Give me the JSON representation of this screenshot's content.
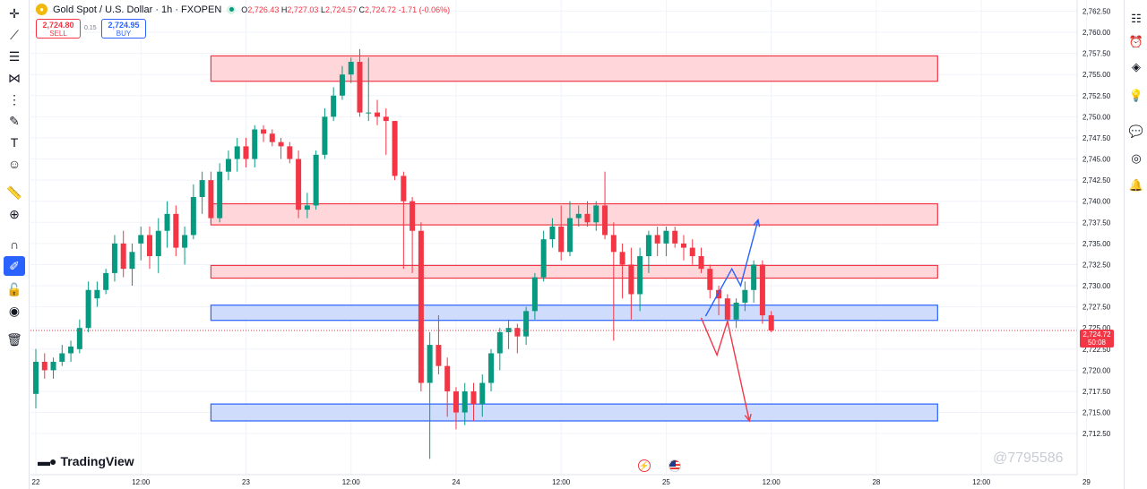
{
  "header": {
    "symbol_title": "Gold Spot / U.S. Dollar · 1h · FXOPEN",
    "open_label": "O",
    "open": "2,726.43",
    "high_label": "H",
    "high": "2,727.03",
    "low_label": "L",
    "low": "2,724.57",
    "close_label": "C",
    "close": "2,724.72",
    "change": "-1.71 (-0.06%)"
  },
  "trade": {
    "sell_price": "2,724.80",
    "sell_label": "SELL",
    "spread": "0.15",
    "buy_price": "2,724.95",
    "buy_label": "BUY"
  },
  "brand": {
    "name": "TradingView"
  },
  "watermark": "@7795586",
  "current_price": {
    "price": "2,724.72",
    "countdown": "50:08"
  },
  "colors": {
    "up": "#089981",
    "down": "#f23645",
    "accent": "#2962ff",
    "resistance_fill": "#ffd6d9",
    "support_fill": "#cfdcfb"
  },
  "left_tools": [
    "crosshair-icon",
    "trend-line-icon",
    "fib-icon",
    "pattern-icon",
    "projection-icon",
    "brush-icon",
    "text-icon",
    "emoji-icon",
    "ruler-icon",
    "zoom-icon",
    "magnet-icon",
    "lock-drawing-icon",
    "lock-icon",
    "eye-icon",
    "trash-icon"
  ],
  "right_tools": [
    "watchlist-icon",
    "alarm-clock-icon",
    "layers-icon",
    "lightbulb-icon",
    "chat-icon",
    "broadcast-icon",
    "bell-icon"
  ],
  "chart_data": {
    "type": "candlestick",
    "symbol": "Gold Spot / U.S. Dollar",
    "interval": "1h",
    "ylim": [
      2710.5,
      2763.5
    ],
    "y_ticks": [
      "2,712.50",
      "2,715.00",
      "2,717.50",
      "2,720.00",
      "2,722.50",
      "2,725.00",
      "2,727.50",
      "2,730.00",
      "2,732.50",
      "2,735.00",
      "2,737.50",
      "2,740.00",
      "2,742.50",
      "2,745.00",
      "2,747.50",
      "2,750.00",
      "2,752.50",
      "2,755.00",
      "2,757.50",
      "2,760.00",
      "2,762.50"
    ],
    "x_ticks": [
      {
        "label": "22",
        "at": 0
      },
      {
        "label": "12:00",
        "at": 12
      },
      {
        "label": "23",
        "at": 24
      },
      {
        "label": "12:00",
        "at": 36
      },
      {
        "label": "24",
        "at": 48
      },
      {
        "label": "12:00",
        "at": 60
      },
      {
        "label": "25",
        "at": 72
      },
      {
        "label": "12:00",
        "at": 84
      },
      {
        "label": "28",
        "at": 96
      },
      {
        "label": "12:00",
        "at": 108
      },
      {
        "label": "29",
        "at": 120
      },
      {
        "label": "12:00",
        "at": 132
      }
    ],
    "candles": [
      [
        2717.2,
        2722.5,
        2715.5,
        2721.0
      ],
      [
        2721.0,
        2722.0,
        2719.0,
        2720.0
      ],
      [
        2720.0,
        2721.5,
        2719.0,
        2721.0
      ],
      [
        2721.0,
        2723.0,
        2720.5,
        2722.0
      ],
      [
        2722.0,
        2723.5,
        2721.0,
        2722.8
      ],
      [
        2722.5,
        2726.0,
        2722.0,
        2725.0
      ],
      [
        2725.0,
        2730.5,
        2724.5,
        2729.5
      ],
      [
        2728.5,
        2730.5,
        2727.5,
        2729.5
      ],
      [
        2729.5,
        2732.0,
        2729.0,
        2731.5
      ],
      [
        2731.5,
        2736.0,
        2730.5,
        2735.0
      ],
      [
        2735.0,
        2736.5,
        2731.0,
        2732.0
      ],
      [
        2732.0,
        2735.0,
        2730.0,
        2734.0
      ],
      [
        2735.0,
        2737.0,
        2733.0,
        2736.0
      ],
      [
        2736.0,
        2737.0,
        2732.0,
        2733.5
      ],
      [
        2733.5,
        2738.0,
        2731.5,
        2736.5
      ],
      [
        2736.5,
        2740.0,
        2734.5,
        2738.5
      ],
      [
        2738.5,
        2739.5,
        2733.5,
        2734.5
      ],
      [
        2734.5,
        2737.0,
        2732.5,
        2736.0
      ],
      [
        2736.0,
        2742.0,
        2735.5,
        2740.5
      ],
      [
        2740.5,
        2743.5,
        2738.5,
        2742.5
      ],
      [
        2742.5,
        2743.5,
        2737.5,
        2738.0
      ],
      [
        2738.0,
        2744.5,
        2737.5,
        2743.5
      ],
      [
        2743.5,
        2746.0,
        2742.5,
        2745.0
      ],
      [
        2745.0,
        2747.5,
        2743.5,
        2746.5
      ],
      [
        2746.5,
        2747.5,
        2744.0,
        2745.0
      ],
      [
        2745.0,
        2749.0,
        2744.0,
        2748.5
      ],
      [
        2748.5,
        2749.0,
        2747.0,
        2748.0
      ],
      [
        2748.0,
        2748.5,
        2746.5,
        2747.0
      ],
      [
        2747.0,
        2747.5,
        2745.0,
        2746.5
      ],
      [
        2746.5,
        2747.0,
        2744.5,
        2745.0
      ],
      [
        2745.0,
        2746.0,
        2738.0,
        2739.0
      ],
      [
        2739.0,
        2741.0,
        2738.0,
        2739.5
      ],
      [
        2739.5,
        2746.0,
        2739.0,
        2745.5
      ],
      [
        2745.5,
        2751.0,
        2745.0,
        2750.0
      ],
      [
        2750.0,
        2753.5,
        2749.5,
        2752.5
      ],
      [
        2752.5,
        2756.0,
        2752.0,
        2755.0
      ],
      [
        2755.0,
        2757.0,
        2754.0,
        2756.5
      ],
      [
        2756.5,
        2758.0,
        2750.0,
        2750.5
      ],
      [
        2750.5,
        2757.0,
        2749.5,
        2750.5
      ],
      [
        2750.5,
        2752.0,
        2749.0,
        2750.0
      ],
      [
        2750.0,
        2751.0,
        2745.5,
        2749.5
      ],
      [
        2749.5,
        2749.5,
        2742.5,
        2743.0
      ],
      [
        2743.0,
        2743.5,
        2732.0,
        2740.0
      ],
      [
        2740.0,
        2740.5,
        2731.5,
        2736.5
      ],
      [
        2736.5,
        2737.5,
        2717.5,
        2718.5
      ],
      [
        2718.5,
        2724.5,
        2709.5,
        2723.0
      ],
      [
        2723.0,
        2726.5,
        2719.5,
        2720.5
      ],
      [
        2720.5,
        2721.5,
        2714.5,
        2717.5
      ],
      [
        2717.5,
        2718.0,
        2713.0,
        2715.0
      ],
      [
        2715.0,
        2718.5,
        2713.5,
        2717.5
      ],
      [
        2717.5,
        2718.5,
        2714.0,
        2716.0
      ],
      [
        2716.0,
        2719.5,
        2714.5,
        2718.5
      ],
      [
        2718.5,
        2722.5,
        2717.5,
        2722.0
      ],
      [
        2722.0,
        2725.0,
        2720.0,
        2724.5
      ],
      [
        2724.5,
        2726.0,
        2722.5,
        2725.0
      ],
      [
        2725.0,
        2725.5,
        2722.0,
        2724.0
      ],
      [
        2724.0,
        2727.5,
        2723.0,
        2727.0
      ],
      [
        2727.0,
        2731.5,
        2726.0,
        2731.0
      ],
      [
        2731.0,
        2736.5,
        2730.5,
        2735.5
      ],
      [
        2735.5,
        2738.0,
        2734.5,
        2737.0
      ],
      [
        2737.0,
        2739.5,
        2733.0,
        2734.0
      ],
      [
        2734.0,
        2740.0,
        2733.5,
        2738.0
      ],
      [
        2738.0,
        2739.5,
        2737.0,
        2738.5
      ],
      [
        2738.5,
        2740.0,
        2737.0,
        2737.5
      ],
      [
        2737.5,
        2740.0,
        2736.5,
        2739.5
      ],
      [
        2739.5,
        2743.5,
        2735.5,
        2736.0
      ],
      [
        2736.0,
        2737.5,
        2723.5,
        2734.0
      ],
      [
        2734.0,
        2735.0,
        2728.5,
        2732.5
      ],
      [
        2732.5,
        2734.5,
        2726.0,
        2729.0
      ],
      [
        2729.0,
        2734.5,
        2727.0,
        2733.5
      ],
      [
        2733.5,
        2736.5,
        2731.5,
        2736.0
      ],
      [
        2736.0,
        2737.0,
        2733.5,
        2735.0
      ],
      [
        2735.0,
        2737.0,
        2733.5,
        2736.5
      ],
      [
        2736.5,
        2737.0,
        2734.5,
        2735.0
      ],
      [
        2735.0,
        2736.0,
        2733.0,
        2734.5
      ],
      [
        2734.5,
        2735.5,
        2732.5,
        2733.5
      ],
      [
        2733.5,
        2734.5,
        2731.5,
        2732.0
      ],
      [
        2732.0,
        2732.5,
        2728.5,
        2729.5
      ],
      [
        2729.5,
        2730.0,
        2726.5,
        2728.5
      ],
      [
        2728.5,
        2729.0,
        2725.5,
        2726.0
      ],
      [
        2726.0,
        2728.5,
        2725.0,
        2728.0
      ],
      [
        2728.0,
        2730.5,
        2727.0,
        2729.5
      ],
      [
        2729.5,
        2733.0,
        2728.0,
        2732.5
      ],
      [
        2732.5,
        2733.0,
        2725.5,
        2726.5
      ],
      [
        2726.5,
        2727.0,
        2724.5,
        2724.7
      ]
    ],
    "drawings": {
      "resistance_zones": [
        {
          "top": 2757.2,
          "bottom": 2754.2,
          "start": 20,
          "end": 103
        },
        {
          "top": 2739.7,
          "bottom": 2737.2,
          "start": 20,
          "end": 103
        },
        {
          "top": 2732.4,
          "bottom": 2730.9,
          "start": 20,
          "end": 103
        }
      ],
      "support_zones": [
        {
          "top": 2727.7,
          "bottom": 2725.9,
          "start": 20,
          "end": 103
        },
        {
          "top": 2716.0,
          "bottom": 2714.0,
          "start": 20,
          "end": 103
        }
      ],
      "bullish_path": [
        [
          76.5,
          2726.4
        ],
        [
          79.5,
          2732.0
        ],
        [
          80.5,
          2730.0
        ],
        [
          82.5,
          2737.8
        ]
      ],
      "bearish_path": [
        [
          76.0,
          2726.2
        ],
        [
          77.8,
          2721.8
        ],
        [
          79.0,
          2725.8
        ],
        [
          81.5,
          2714.0
        ]
      ]
    }
  }
}
